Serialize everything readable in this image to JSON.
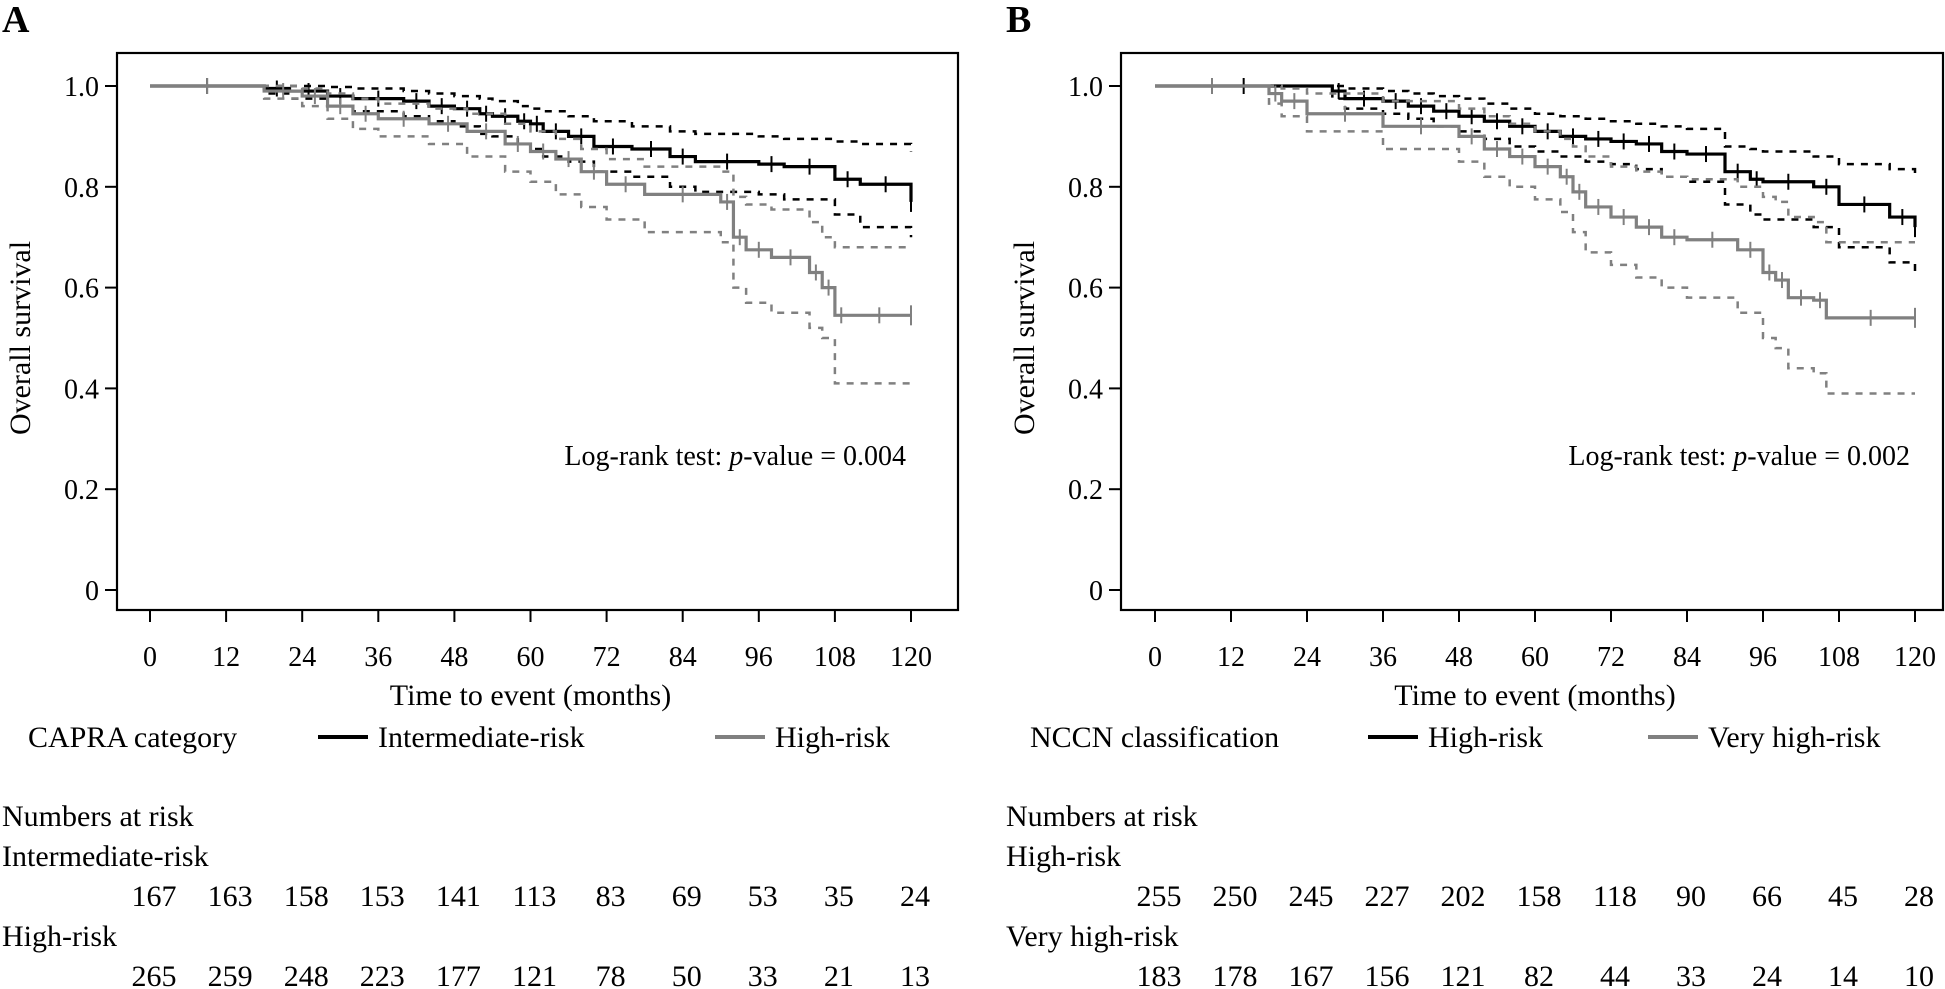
{
  "chart_data": [
    {
      "type": "line",
      "subtype": "kaplan-meier",
      "panel_label": "A",
      "xlabel": "Time to event (months)",
      "ylabel": "Overall survival",
      "xlim": [
        0,
        120
      ],
      "ylim": [
        0,
        1.0
      ],
      "x_ticks": [
        0,
        12,
        24,
        36,
        48,
        60,
        72,
        84,
        96,
        108,
        120
      ],
      "y_ticks": [
        0,
        0.2,
        0.4,
        0.6,
        0.8,
        1.0
      ],
      "y_tick_labels": [
        "0",
        "0.2",
        "0.4",
        "0.6",
        "0.8",
        "1.0"
      ],
      "annotation": {
        "prefix": "Log-rank test: ",
        "italic": "p",
        "suffix": "-value = 0.004"
      },
      "legend": {
        "title": "CAPRA category",
        "placement": "bottom"
      },
      "series": [
        {
          "name": "Intermediate-risk",
          "color": "#000000",
          "x": [
            0,
            18,
            22,
            28,
            32,
            40,
            44,
            48,
            52,
            54,
            58,
            60,
            62,
            66,
            70,
            76,
            82,
            86,
            96,
            100,
            108,
            112,
            120
          ],
          "y": [
            1.0,
            0.995,
            0.99,
            0.98,
            0.975,
            0.97,
            0.96,
            0.955,
            0.945,
            0.94,
            0.93,
            0.925,
            0.91,
            0.9,
            0.88,
            0.875,
            0.86,
            0.85,
            0.845,
            0.84,
            0.815,
            0.805,
            0.77
          ],
          "ci_upper": [
            1.0,
            1.0,
            1.0,
            0.998,
            0.995,
            0.99,
            0.985,
            0.98,
            0.975,
            0.97,
            0.96,
            0.955,
            0.95,
            0.94,
            0.93,
            0.92,
            0.91,
            0.905,
            0.9,
            0.895,
            0.89,
            0.885,
            0.87
          ],
          "ci_lower": [
            1.0,
            0.985,
            0.975,
            0.96,
            0.95,
            0.94,
            0.93,
            0.92,
            0.905,
            0.9,
            0.885,
            0.875,
            0.86,
            0.85,
            0.83,
            0.82,
            0.8,
            0.79,
            0.785,
            0.775,
            0.745,
            0.72,
            0.7
          ]
        },
        {
          "name": "High-risk",
          "color": "#808080",
          "x": [
            0,
            18,
            24,
            28,
            32,
            36,
            44,
            50,
            56,
            60,
            64,
            68,
            72,
            78,
            90,
            92,
            94,
            98,
            104,
            106,
            108,
            110,
            120
          ],
          "y": [
            1.0,
            0.99,
            0.98,
            0.96,
            0.945,
            0.935,
            0.925,
            0.91,
            0.885,
            0.87,
            0.855,
            0.83,
            0.805,
            0.785,
            0.77,
            0.7,
            0.675,
            0.66,
            0.63,
            0.6,
            0.545,
            0.545,
            0.545
          ],
          "ci_upper": [
            1.0,
            1.0,
            0.995,
            0.985,
            0.975,
            0.965,
            0.955,
            0.945,
            0.925,
            0.91,
            0.895,
            0.875,
            0.855,
            0.84,
            0.83,
            0.78,
            0.765,
            0.755,
            0.73,
            0.7,
            0.68,
            0.68,
            0.68
          ],
          "ci_lower": [
            1.0,
            0.975,
            0.96,
            0.935,
            0.915,
            0.9,
            0.885,
            0.86,
            0.83,
            0.81,
            0.785,
            0.76,
            0.735,
            0.71,
            0.69,
            0.6,
            0.57,
            0.55,
            0.52,
            0.5,
            0.41,
            0.41,
            0.41
          ]
        }
      ],
      "numbers_at_risk": {
        "title": "Numbers at risk",
        "groups": [
          {
            "name": "Intermediate-risk",
            "values": [
              167,
              163,
              158,
              153,
              141,
              113,
              83,
              69,
              53,
              35,
              24
            ]
          },
          {
            "name": "High-risk",
            "values": [
              265,
              259,
              248,
              223,
              177,
              121,
              78,
              50,
              33,
              21,
              13
            ]
          }
        ]
      }
    },
    {
      "type": "line",
      "subtype": "kaplan-meier",
      "panel_label": "B",
      "xlabel": "Time to event (months)",
      "ylabel": "Overall survival",
      "xlim": [
        0,
        120
      ],
      "ylim": [
        0,
        1.0
      ],
      "x_ticks": [
        0,
        12,
        24,
        36,
        48,
        60,
        72,
        84,
        96,
        108,
        120
      ],
      "y_ticks": [
        0,
        0.2,
        0.4,
        0.6,
        0.8,
        1.0
      ],
      "y_tick_labels": [
        "0",
        "0.2",
        "0.4",
        "0.6",
        "0.8",
        "1.0"
      ],
      "annotation": {
        "prefix": "Log-rank test: ",
        "italic": "p",
        "suffix": "-value = 0.002"
      },
      "legend": {
        "title": "NCCN classification",
        "placement": "bottom"
      },
      "series": [
        {
          "name": "High-risk",
          "color": "#000000",
          "x": [
            0,
            28,
            30,
            36,
            40,
            44,
            48,
            52,
            56,
            60,
            64,
            68,
            72,
            76,
            80,
            84,
            90,
            94,
            96,
            104,
            108,
            116,
            120
          ],
          "y": [
            1.0,
            0.99,
            0.975,
            0.97,
            0.96,
            0.95,
            0.94,
            0.93,
            0.92,
            0.91,
            0.9,
            0.895,
            0.89,
            0.885,
            0.87,
            0.865,
            0.83,
            0.815,
            0.81,
            0.8,
            0.765,
            0.74,
            0.72
          ],
          "ci_upper": [
            1.0,
            1.0,
            0.995,
            0.99,
            0.985,
            0.98,
            0.975,
            0.965,
            0.955,
            0.945,
            0.94,
            0.935,
            0.93,
            0.925,
            0.92,
            0.915,
            0.88,
            0.875,
            0.87,
            0.86,
            0.845,
            0.835,
            0.82
          ],
          "ci_lower": [
            1.0,
            0.975,
            0.955,
            0.945,
            0.935,
            0.92,
            0.91,
            0.895,
            0.88,
            0.87,
            0.86,
            0.85,
            0.845,
            0.835,
            0.82,
            0.81,
            0.765,
            0.745,
            0.735,
            0.72,
            0.68,
            0.65,
            0.62
          ]
        },
        {
          "name": "Very high-risk",
          "color": "#808080",
          "x": [
            0,
            18,
            20,
            24,
            36,
            48,
            52,
            56,
            60,
            64,
            66,
            68,
            72,
            76,
            80,
            84,
            92,
            96,
            98,
            100,
            104,
            106,
            120
          ],
          "y": [
            1.0,
            0.985,
            0.97,
            0.945,
            0.92,
            0.9,
            0.875,
            0.86,
            0.84,
            0.82,
            0.79,
            0.76,
            0.74,
            0.72,
            0.7,
            0.695,
            0.675,
            0.63,
            0.615,
            0.58,
            0.575,
            0.54,
            0.54
          ],
          "ci_upper": [
            1.0,
            1.0,
            0.995,
            0.985,
            0.97,
            0.955,
            0.94,
            0.925,
            0.91,
            0.895,
            0.88,
            0.86,
            0.84,
            0.83,
            0.82,
            0.815,
            0.8,
            0.78,
            0.77,
            0.74,
            0.73,
            0.69,
            0.69
          ],
          "ci_lower": [
            1.0,
            0.965,
            0.94,
            0.91,
            0.875,
            0.85,
            0.82,
            0.8,
            0.775,
            0.75,
            0.71,
            0.67,
            0.645,
            0.62,
            0.6,
            0.58,
            0.55,
            0.5,
            0.48,
            0.44,
            0.43,
            0.39,
            0.39
          ]
        }
      ],
      "numbers_at_risk": {
        "title": "Numbers at risk",
        "groups": [
          {
            "name": "High-risk",
            "values": [
              255,
              250,
              245,
              227,
              202,
              158,
              118,
              90,
              66,
              45,
              28
            ]
          },
          {
            "name": "Very high-risk",
            "values": [
              183,
              178,
              167,
              156,
              121,
              82,
              44,
              33,
              24,
              14,
              10
            ]
          }
        ]
      }
    }
  ]
}
